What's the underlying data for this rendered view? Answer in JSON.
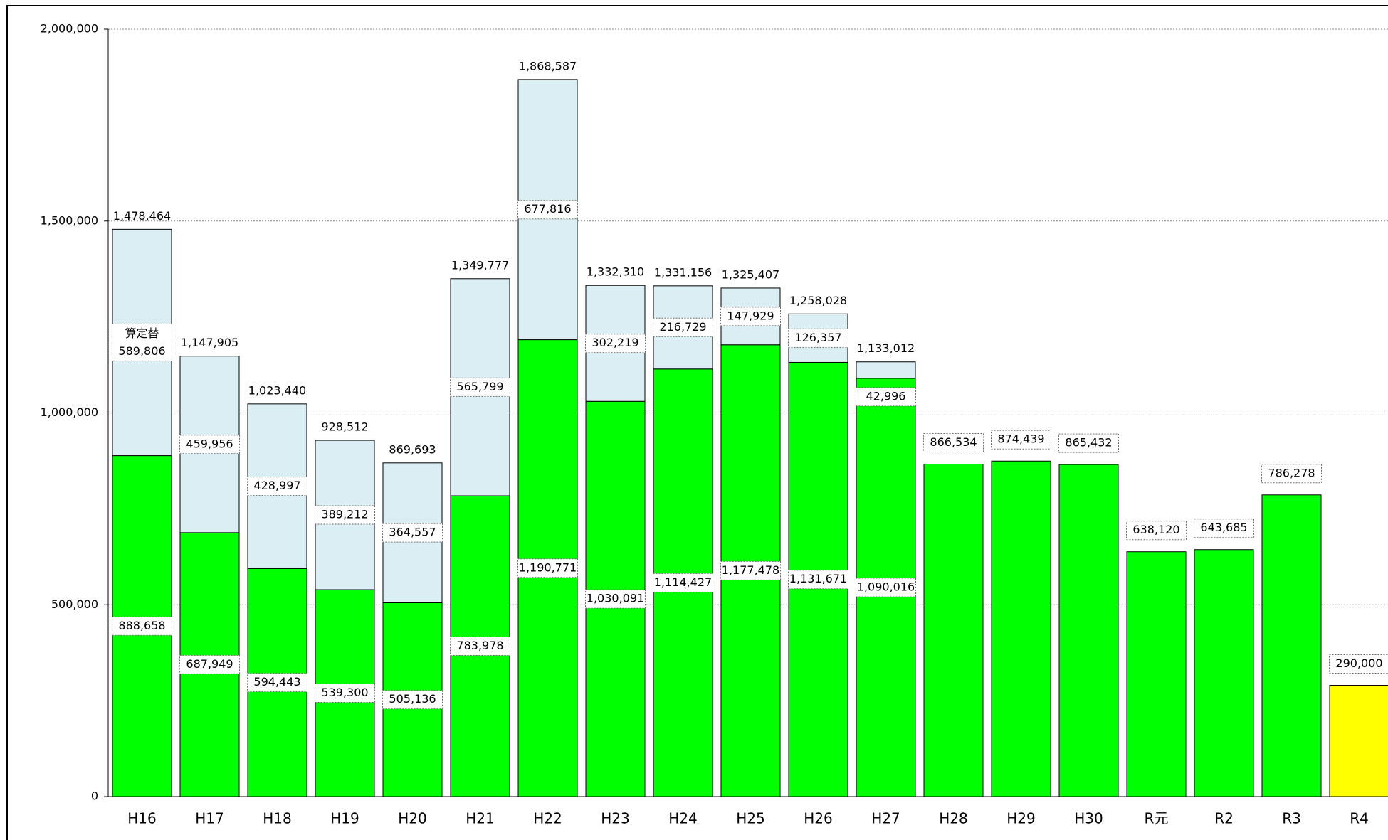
{
  "chart_data": {
    "type": "stacked_bar",
    "categories": [
      "H16",
      "H17",
      "H18",
      "H19",
      "H20",
      "H21",
      "H22",
      "H23",
      "H24",
      "H25",
      "H26",
      "H27",
      "H28",
      "H29",
      "H30",
      "R元",
      "R2",
      "R3",
      "R4"
    ],
    "series": [
      {
        "colors": [
          "#00ff00",
          "#00ff00",
          "#00ff00",
          "#00ff00",
          "#00ff00",
          "#00ff00",
          "#00ff00",
          "#00ff00",
          "#00ff00",
          "#00ff00",
          "#00ff00",
          "#00ff00",
          "#00ff00",
          "#00ff00",
          "#00ff00",
          "#00ff00",
          "#00ff00",
          "#00ff00",
          "#ffff00"
        ],
        "values": [
          888658,
          687949,
          594443,
          539300,
          505136,
          783978,
          1190771,
          1030091,
          1114427,
          1177478,
          1131671,
          1090016,
          866534,
          874439,
          865432,
          638120,
          643685,
          786278,
          290000
        ],
        "value_labels": [
          "888,658",
          "687,949",
          "594,443",
          "539,300",
          "505,136",
          "783,978",
          "1,190,771",
          "1,030,091",
          "1,114,427",
          "1,177,478",
          "1,131,671",
          "1,090,016",
          "866,534",
          "874,439",
          "865,432",
          "638,120",
          "643,685",
          "786,278",
          "290,000"
        ]
      },
      {
        "name": "算定替",
        "color": "#daeef3",
        "values": [
          589806,
          459956,
          428997,
          389212,
          364557,
          565799,
          677816,
          302219,
          216729,
          147929,
          126357,
          42996,
          null,
          null,
          null,
          null,
          null,
          null,
          null
        ],
        "value_labels": [
          "589,806",
          "459,956",
          "428,997",
          "389,212",
          "364,557",
          "565,799",
          "677,816",
          "302,219",
          "216,729",
          "147,929",
          "126,357",
          "42,996",
          null,
          null,
          null,
          null,
          null,
          null,
          null
        ]
      }
    ],
    "total_labels": [
      "1,478,464",
      "1,147,905",
      "1,023,440",
      "928,512",
      "869,693",
      "1,349,777",
      "1,868,587",
      "1,332,310",
      "1,331,156",
      "1,325,407",
      "1,258,028",
      "1,133,012",
      null,
      null,
      null,
      null,
      null,
      null,
      null
    ],
    "ylim": [
      0,
      2000000
    ],
    "yticks": [
      0,
      {
        "value": 500000,
        "label": "500,000"
      },
      {
        "value": 1000000,
        "label": "1,000,000"
      },
      {
        "value": 1500000,
        "label": "1,500,000"
      },
      {
        "value": 2000000,
        "label": "2,000,000"
      }
    ],
    "grid": true
  }
}
